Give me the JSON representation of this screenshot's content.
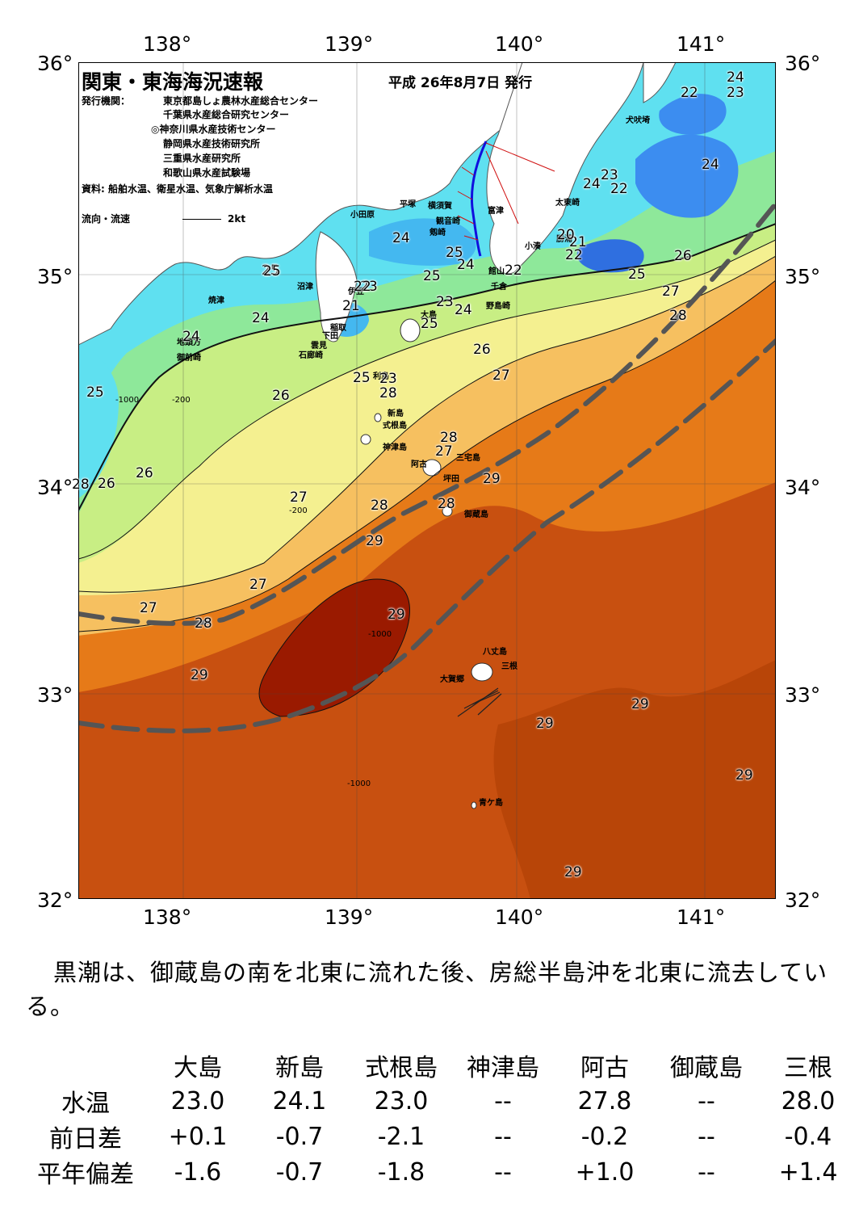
{
  "axes": {
    "lon_labels": [
      "138°",
      "139°",
      "140°",
      "141°"
    ],
    "lat_labels": [
      "36°",
      "35°",
      "34°",
      "33°",
      "32°"
    ]
  },
  "header": {
    "title": "関東・東海海況速報",
    "date": "平成 26年8月7日 発行",
    "issuers_label": "発行機関：",
    "issuers": [
      "東京都島しょ農林水産総合センター",
      "千葉県水産総合研究センター",
      "◎神奈川県水産技術センター",
      "静岡県水産技術研究所",
      "三重県水産研究所",
      "和歌山県水産試験場"
    ],
    "sources": "資料: 船舶水温、衛星水温、気象庁解析水温",
    "current_legend_label": "流向・流速",
    "current_legend_speed": "2kt"
  },
  "place_names": [
    "犬吠埼",
    "太東崎",
    "勝浦",
    "小湊",
    "館山",
    "千倉",
    "野島崎",
    "富津",
    "横須賀",
    "観音崎",
    "剱崎",
    "平塚",
    "小田原",
    "沼津",
    "焼津",
    "伊豆",
    "稲取",
    "下田",
    "雲見",
    "石廊崎",
    "御前崎",
    "地頭方",
    "大島",
    "利島",
    "新島",
    "式根島",
    "神津島",
    "三宅島",
    "阿古",
    "坪田",
    "御蔵島",
    "八丈島",
    "三根",
    "大賀郷",
    "青ケ島"
  ],
  "isotherm_labels": [
    "24",
    "23",
    "22",
    "24",
    "23",
    "22",
    "24",
    "21",
    "22",
    "20",
    "26",
    "25",
    "27",
    "28",
    "24",
    "25",
    "25",
    "25",
    "24",
    "23",
    "22",
    "24",
    "21",
    "22",
    "23",
    "24",
    "25",
    "23",
    "26",
    "27",
    "28",
    "25",
    "26",
    "25",
    "26",
    "27",
    "28",
    "27",
    "28",
    "29",
    "28",
    "29",
    "27",
    "27",
    "28",
    "29",
    "26",
    "28",
    "29",
    "29",
    "29",
    "29",
    "29",
    "29",
    "24",
    "25"
  ],
  "depth_contours": [
    "-200",
    "-1000"
  ],
  "kuroshio_note": "黒潮は、御蔵島の南を北東に流れた後、房総半島沖を北東に流去している。",
  "observations": {
    "columns": [
      "大島",
      "新島",
      "式根島",
      "神津島",
      "阿古",
      "御蔵島",
      "三根"
    ],
    "rows": [
      {
        "label": "水温",
        "values": [
          "23.0",
          "24.1",
          "23.0",
          "--",
          "27.8",
          "--",
          "28.0"
        ]
      },
      {
        "label": "前日差",
        "values": [
          "+0.1",
          "-0.7",
          "-2.1",
          "--",
          "-0.2",
          "--",
          "-0.4"
        ]
      },
      {
        "label": "平年偏差",
        "values": [
          "-1.6",
          "-0.7",
          "-1.8",
          "--",
          "+1.0",
          "--",
          "+1.4"
        ]
      }
    ]
  },
  "colors": {
    "t20": "#2f6fe0",
    "t22": "#3c8df0",
    "t23": "#44b8f0",
    "t24": "#5fe0f0",
    "t25": "#8ee89a",
    "t26": "#c8ee84",
    "t27": "#f4f090",
    "t28": "#f6c060",
    "t29": "#e67a18",
    "t29b": "#c85010",
    "t30": "#9a1a00",
    "kuroshio": "#555555"
  }
}
